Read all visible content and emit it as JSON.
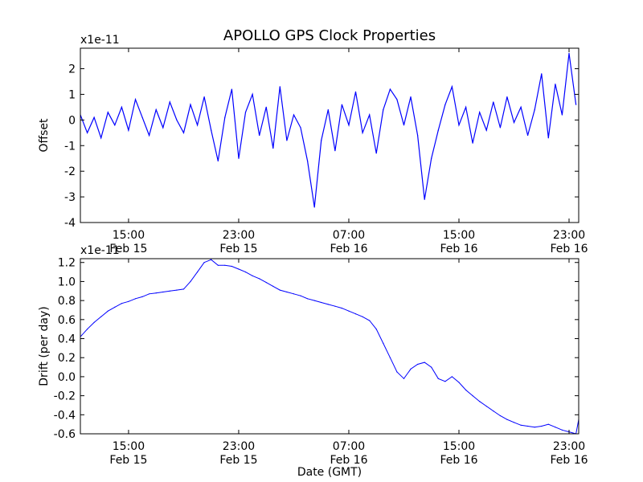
{
  "title": "APOLLO GPS Clock Properties",
  "chart_data": [
    {
      "type": "line",
      "ylabel": "Offset",
      "xlabel": "",
      "yscale_label": "x1e-11",
      "ylim": [
        -4,
        2.8
      ],
      "xlim": [
        11.5,
        47.7
      ],
      "x_unit": "hours since Feb 15 00:00 GMT",
      "y_ticks": [
        "-4",
        "-3",
        "-2",
        "-1",
        "0",
        "1",
        "2"
      ],
      "x_ticks": [
        {
          "x": 15,
          "time": "15:00",
          "date": "Feb 15"
        },
        {
          "x": 23,
          "time": "23:00",
          "date": "Feb 15"
        },
        {
          "x": 31,
          "time": "07:00",
          "date": "Feb 16"
        },
        {
          "x": 39,
          "time": "15:00",
          "date": "Feb 16"
        },
        {
          "x": 47,
          "time": "23:00",
          "date": "Feb 16"
        }
      ],
      "series": [
        {
          "color": "#0000ff",
          "x": [
            11.5,
            12.0,
            12.5,
            13.0,
            13.5,
            14.0,
            14.5,
            15.0,
            15.5,
            16.0,
            16.5,
            17.0,
            17.5,
            18.0,
            18.5,
            19.0,
            19.5,
            20.0,
            20.5,
            21.0,
            21.5,
            22.0,
            22.5,
            23.0,
            23.5,
            24.0,
            24.5,
            25.0,
            25.5,
            26.0,
            26.5,
            27.0,
            27.5,
            28.0,
            28.5,
            29.0,
            29.5,
            30.0,
            30.5,
            31.0,
            31.5,
            32.0,
            32.5,
            33.0,
            33.5,
            34.0,
            34.5,
            35.0,
            35.5,
            36.0,
            36.5,
            37.0,
            37.5,
            38.0,
            38.5,
            39.0,
            39.5,
            40.0,
            40.5,
            41.0,
            41.5,
            42.0,
            42.5,
            43.0,
            43.5,
            44.0,
            44.5,
            45.0,
            45.5,
            46.0,
            46.5,
            47.0,
            47.5
          ],
          "y": [
            0.2,
            -0.5,
            0.1,
            -0.7,
            0.3,
            -0.2,
            0.5,
            -0.4,
            0.8,
            0.1,
            -0.6,
            0.4,
            -0.3,
            0.7,
            0.0,
            -0.5,
            0.6,
            -0.2,
            0.9,
            -0.4,
            -1.6,
            0.1,
            1.2,
            -1.5,
            0.3,
            1.0,
            -0.6,
            0.5,
            -1.1,
            1.3,
            -0.8,
            0.2,
            -0.3,
            -1.6,
            -3.4,
            -0.8,
            0.4,
            -1.2,
            0.6,
            -0.2,
            1.1,
            -0.5,
            0.2,
            -1.3,
            0.4,
            1.2,
            0.8,
            -0.2,
            0.9,
            -0.6,
            -3.1,
            -1.5,
            -0.4,
            0.6,
            1.3,
            -0.2,
            0.5,
            -0.9,
            0.3,
            -0.4,
            0.7,
            -0.3,
            0.9,
            -0.1,
            0.5,
            -0.6,
            0.4,
            1.8,
            -0.7,
            1.4,
            0.2,
            2.6,
            0.6
          ]
        }
      ]
    },
    {
      "type": "line",
      "ylabel": "Drift (per day)",
      "xlabel": "Date (GMT)",
      "yscale_label": "x1e-11",
      "ylim": [
        -0.6,
        1.24
      ],
      "xlim": [
        11.5,
        47.7
      ],
      "x_unit": "hours since Feb 15 00:00 GMT",
      "y_ticks": [
        "-0.6",
        "-0.4",
        "-0.2",
        "0.0",
        "0.2",
        "0.4",
        "0.6",
        "0.8",
        "1.0",
        "1.2"
      ],
      "x_ticks": [
        {
          "x": 15,
          "time": "15:00",
          "date": "Feb 15"
        },
        {
          "x": 23,
          "time": "23:00",
          "date": "Feb 15"
        },
        {
          "x": 31,
          "time": "07:00",
          "date": "Feb 16"
        },
        {
          "x": 39,
          "time": "15:00",
          "date": "Feb 16"
        },
        {
          "x": 47,
          "time": "23:00",
          "date": "Feb 16"
        }
      ],
      "series": [
        {
          "color": "#0000ff",
          "x": [
            11.5,
            12.0,
            12.5,
            13.0,
            13.5,
            14.0,
            14.5,
            15.0,
            15.5,
            16.0,
            16.5,
            17.0,
            17.5,
            18.0,
            18.5,
            19.0,
            19.5,
            20.0,
            20.5,
            21.0,
            21.5,
            22.0,
            22.5,
            23.0,
            23.5,
            24.0,
            24.5,
            25.0,
            25.5,
            26.0,
            26.5,
            27.0,
            27.5,
            28.0,
            28.5,
            29.0,
            29.5,
            30.0,
            30.5,
            31.0,
            31.5,
            32.0,
            32.5,
            33.0,
            33.5,
            34.0,
            34.5,
            35.0,
            35.5,
            36.0,
            36.5,
            37.0,
            37.5,
            38.0,
            38.5,
            39.0,
            39.5,
            40.0,
            40.5,
            41.0,
            41.5,
            42.0,
            42.5,
            43.0,
            43.5,
            44.0,
            44.5,
            45.0,
            45.5,
            46.0,
            46.5,
            47.0,
            47.5,
            47.7
          ],
          "y": [
            0.42,
            0.5,
            0.57,
            0.63,
            0.69,
            0.73,
            0.77,
            0.79,
            0.82,
            0.84,
            0.87,
            0.88,
            0.89,
            0.9,
            0.91,
            0.92,
            1.0,
            1.1,
            1.2,
            1.23,
            1.17,
            1.17,
            1.16,
            1.13,
            1.1,
            1.06,
            1.03,
            0.99,
            0.95,
            0.91,
            0.89,
            0.87,
            0.85,
            0.82,
            0.8,
            0.78,
            0.76,
            0.74,
            0.72,
            0.69,
            0.66,
            0.63,
            0.59,
            0.5,
            0.35,
            0.2,
            0.05,
            -0.02,
            0.08,
            0.13,
            0.15,
            0.1,
            -0.02,
            -0.05,
            0.0,
            -0.06,
            -0.14,
            -0.2,
            -0.26,
            -0.31,
            -0.36,
            -0.41,
            -0.45,
            -0.48,
            -0.51,
            -0.52,
            -0.53,
            -0.52,
            -0.5,
            -0.53,
            -0.56,
            -0.58,
            -0.6,
            -0.45
          ]
        }
      ]
    }
  ]
}
